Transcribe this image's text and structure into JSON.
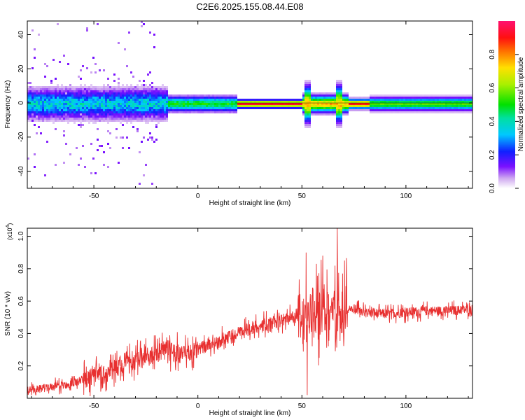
{
  "figure": {
    "title": "C2E6.2025.155.08.44.E08"
  },
  "chart_data": [
    {
      "type": "heatmap",
      "title": "C2E6.2025.155.08.44.E08",
      "xlabel": "Height of straight line (km)",
      "ylabel": "Frequency (Hz)",
      "xlim": [
        -82,
        132
      ],
      "ylim": [
        -50,
        48
      ],
      "x_ticks": [
        -50,
        0,
        50,
        100
      ],
      "x_tick_labels": [
        "-50",
        "0",
        "50",
        "100"
      ],
      "y_ticks": [
        -40,
        -20,
        0,
        20,
        40
      ],
      "y_tick_labels": [
        "-40",
        "-20",
        "0",
        "20",
        "40"
      ],
      "grid": false,
      "colorbar": {
        "label": "Normalized spectral amplitude",
        "range": [
          0,
          1
        ],
        "ticks": [
          0,
          0.2,
          0.4,
          0.6,
          0.8
        ],
        "tick_labels": [
          "0.0",
          "0.2",
          "0.4",
          "0.6",
          "0.8"
        ],
        "colormap": "rainbow (white → violet → blue → cyan → green → yellow → orange → red → magenta)"
      },
      "description_features": {
        "dominant_band_frequency_hz": 0,
        "strong_line_x_range": [
          18,
          80
        ],
        "disturbances_near_x": [
          52,
          67
        ]
      }
    },
    {
      "type": "line",
      "xlabel": "Height of straight line (km)",
      "ylabel": "SNR (10 * v/v)",
      "y_multiplier_label": "(x10",
      "y_multiplier_exponent": "4",
      "y_multiplier_close": ")",
      "xlim": [
        -82,
        132
      ],
      "ylim": [
        0,
        1.05
      ],
      "x_ticks": [
        -50,
        0,
        50,
        100
      ],
      "x_tick_labels": [
        "-50",
        "0",
        "50",
        "100"
      ],
      "y_ticks": [
        0.2,
        0.4,
        0.6,
        0.8,
        1.0
      ],
      "y_tick_labels": [
        "0.2",
        "0.4",
        "0.6",
        "0.8",
        "1.0"
      ],
      "grid": false,
      "line_color": "#e83030",
      "x": [
        -82,
        -75,
        -70,
        -65,
        -60,
        -55,
        -50,
        -45,
        -40,
        -35,
        -30,
        -25,
        -20,
        -15,
        -10,
        -5,
        0,
        5,
        10,
        15,
        20,
        25,
        30,
        35,
        40,
        45,
        50,
        52,
        55,
        58,
        60,
        63,
        65,
        67,
        70,
        75,
        80,
        90,
        100,
        110,
        120,
        132
      ],
      "y": [
        0.05,
        0.06,
        0.07,
        0.08,
        0.09,
        0.11,
        0.13,
        0.15,
        0.18,
        0.2,
        0.23,
        0.25,
        0.27,
        0.3,
        0.28,
        0.26,
        0.3,
        0.33,
        0.35,
        0.38,
        0.4,
        0.43,
        0.45,
        0.46,
        0.48,
        0.5,
        0.5,
        0.45,
        0.55,
        0.5,
        0.55,
        0.5,
        0.58,
        0.55,
        0.55,
        0.55,
        0.53,
        0.52,
        0.53,
        0.54,
        0.54,
        0.55
      ],
      "peaks": [
        {
          "x": 52,
          "y": 0.9
        },
        {
          "x": 60,
          "y": 0.88
        },
        {
          "x": 67,
          "y": 1.05
        },
        {
          "x": 52.5,
          "y": 0.02
        }
      ]
    }
  ]
}
